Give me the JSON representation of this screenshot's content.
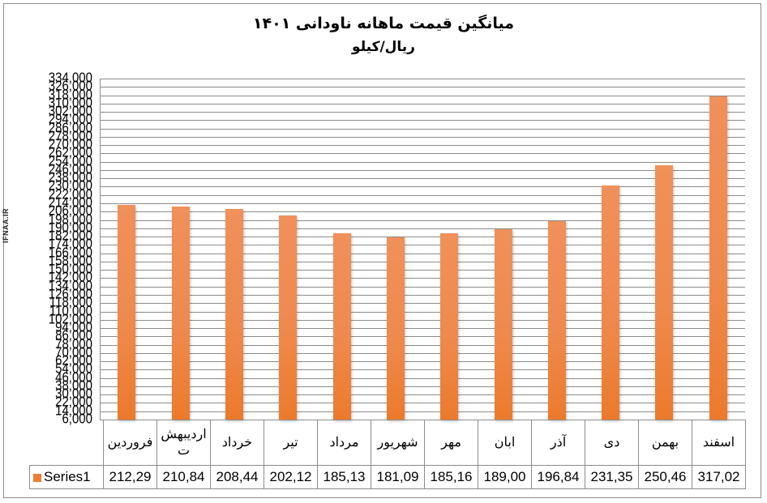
{
  "title": {
    "line1": "میانگین قیمت ماهانه ناودانی ۱۴۰۱",
    "line2": "ریال/کیلو"
  },
  "watermark": "IFNAA.IR",
  "colors": {
    "bar": "#ed7d31",
    "grid": "#8c8c8c"
  },
  "legend": {
    "series_name": "Series1"
  },
  "table": {
    "categories": [
      "فروردین",
      "اردیبهش ت",
      "خرداد",
      "تیر",
      "مرداد",
      "شهریور",
      "مهر",
      "ابان",
      "آذر",
      "دی",
      "بهمن",
      "اسفند"
    ],
    "values": [
      "212,29",
      "210,84",
      "208,44",
      "202,12",
      "185,13",
      "181,09",
      "185,16",
      "189,00",
      "196,84",
      "231,35",
      "250,46",
      "317,02"
    ]
  },
  "chart_data": {
    "type": "bar",
    "title": "میانگین قیمت ماهانه ناودانی ۱۴۰۱ - ریال/کیلو",
    "xlabel": "",
    "ylabel": "",
    "categories": [
      "فروردین",
      "اردیبهشت",
      "خرداد",
      "تیر",
      "مرداد",
      "شهریور",
      "مهر",
      "ابان",
      "آذر",
      "دی",
      "بهمن",
      "اسفند"
    ],
    "series": [
      {
        "name": "Series1",
        "values": [
          212290,
          210840,
          208440,
          202120,
          185130,
          181090,
          185160,
          189000,
          196840,
          231350,
          250460,
          317020
        ]
      }
    ],
    "ylim": [
      6000,
      334000
    ],
    "yticks": [
      "6,000",
      "14,000",
      "22,000",
      "30,000",
      "38,000",
      "46,000",
      "54,000",
      "62,000",
      "70,000",
      "78,000",
      "86,000",
      "94,000",
      "102,000",
      "110,000",
      "118,000",
      "126,000",
      "134,000",
      "142,000",
      "150,000",
      "158,000",
      "166,000",
      "174,000",
      "182,000",
      "190,000",
      "198,000",
      "206,000",
      "214,000",
      "222,000",
      "230,000",
      "238,000",
      "246,000",
      "254,000",
      "262,000",
      "270,000",
      "278,000",
      "286,000",
      "294,000",
      "302,000",
      "310,000",
      "318,000",
      "326,000",
      "334,000"
    ],
    "grid": true,
    "legend_position": "data-table"
  }
}
